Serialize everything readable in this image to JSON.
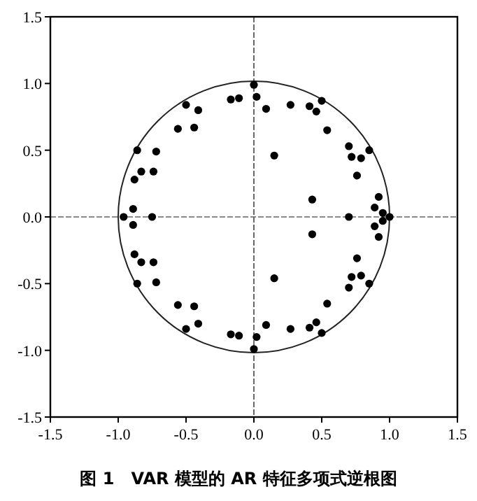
{
  "chart_data": {
    "type": "scatter",
    "title": "图 1　VAR 模型的 AR 特征多项式逆根图",
    "x": [
      0.0,
      0.02,
      0.02,
      -0.5,
      -0.5,
      -0.41,
      -0.41,
      -0.17,
      -0.17,
      -0.11,
      -0.11,
      -0.56,
      -0.56,
      -0.44,
      -0.44,
      -0.86,
      -0.86,
      -0.72,
      -0.72,
      -0.83,
      -0.83,
      -0.88,
      -0.88,
      -0.74,
      -0.74,
      -0.89,
      -0.89,
      -0.96,
      -0.75,
      0.09,
      0.09,
      0.27,
      0.27,
      0.41,
      0.41,
      0.46,
      0.46,
      0.5,
      0.5,
      0.54,
      0.54,
      0.15,
      0.15,
      0.7,
      0.7,
      0.72,
      0.72,
      0.79,
      0.79,
      0.85,
      0.85,
      0.76,
      0.76,
      0.92,
      0.92,
      0.89,
      0.89,
      0.43,
      0.43,
      0.95,
      0.95,
      0.7,
      1.0,
      0.0
    ],
    "values": [
      0.99,
      0.9,
      -0.9,
      0.84,
      -0.84,
      0.8,
      -0.8,
      0.88,
      -0.88,
      0.89,
      -0.89,
      0.66,
      -0.66,
      0.67,
      -0.67,
      0.5,
      -0.5,
      0.49,
      -0.49,
      0.34,
      -0.34,
      0.28,
      -0.28,
      0.34,
      -0.34,
      0.06,
      -0.06,
      0.0,
      0.0,
      0.81,
      -0.81,
      0.84,
      -0.84,
      0.83,
      -0.83,
      0.79,
      -0.79,
      0.87,
      -0.87,
      0.65,
      -0.65,
      0.46,
      -0.46,
      0.53,
      -0.53,
      0.45,
      -0.45,
      0.44,
      -0.44,
      0.5,
      -0.5,
      0.31,
      -0.31,
      0.15,
      -0.15,
      0.07,
      -0.07,
      0.13,
      -0.13,
      0.03,
      -0.03,
      0.0,
      0.0,
      -0.99
    ],
    "color": "#000000",
    "marker": "circle",
    "xlim": [
      -1.5,
      1.5
    ],
    "ylim": [
      -1.5,
      1.5
    ],
    "xticks": [
      -1.5,
      {
        "value": -1,
        "label": "-1.0"
      },
      -0.5,
      {
        "value": 0,
        "label": "0.0"
      },
      0.5,
      {
        "value": 1,
        "label": "1.0"
      },
      1.5
    ],
    "yticks": [
      -1.5,
      {
        "value": -1,
        "label": "-1.0"
      },
      -0.5,
      {
        "value": 0,
        "label": "0.0"
      },
      0.5,
      {
        "value": 1,
        "label": "1.0"
      },
      1.5
    ],
    "ref_lines": [
      {
        "axis": "x",
        "value": 0,
        "color": "#444444",
        "line_style": "dashed"
      },
      {
        "axis": "y",
        "value": 0,
        "color": "#666666",
        "line_style": "dashed"
      }
    ],
    "grid": false
  }
}
